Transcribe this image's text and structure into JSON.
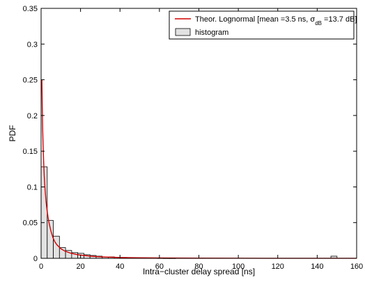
{
  "chart_data": {
    "type": "bar",
    "xlabel": "Intra−cluster delay spread [ns]",
    "ylabel": "PDF",
    "xlim": [
      0,
      160
    ],
    "ylim": [
      0,
      0.35
    ],
    "xticks": [
      0,
      20,
      40,
      60,
      80,
      100,
      120,
      140,
      160
    ],
    "xtick_labels": [
      "0",
      "20",
      "40",
      "60",
      "80",
      "100",
      "120",
      "140",
      "160"
    ],
    "yticks": [
      0,
      0.05,
      0.1,
      0.15,
      0.2,
      0.25,
      0.3,
      0.35
    ],
    "ytick_labels": [
      "0",
      "0.05",
      "0.1",
      "0.15",
      "0.2",
      "0.25",
      "0.3",
      "0.35"
    ],
    "legend_position": "top-right",
    "grid": false,
    "series": [
      {
        "name": "histogram",
        "kind": "histogram",
        "color": "#e2e2e2",
        "edge_color": "#000000",
        "bin_width": 3.1,
        "bin_centers": [
          1.55,
          4.65,
          7.75,
          10.85,
          13.95,
          17.05,
          20.15,
          23.25,
          26.35,
          29.45,
          32.55,
          35.65,
          38.75,
          41.85,
          44.95,
          48.05,
          51.15,
          54.25,
          57.35,
          60.45,
          63.55,
          66.65,
          148.5
        ],
        "values": [
          0.128,
          0.053,
          0.031,
          0.015,
          0.011,
          0.008,
          0.007,
          0.005,
          0.004,
          0.003,
          0.002,
          0.002,
          0.0015,
          0.0012,
          0.001,
          0.0008,
          0.0007,
          0.0006,
          0.0005,
          0.0004,
          0.0003,
          0.0003,
          0.003
        ]
      },
      {
        "name": "Theor. Lognormal [mean =3.5 ns, σdB =13.7 dB]",
        "kind": "line",
        "color": "#d40000",
        "x": [
          0.4,
          0.6,
          0.8,
          1.0,
          1.3,
          1.6,
          2.0,
          2.5,
          3.0,
          3.5,
          4.0,
          5.0,
          6.0,
          7.0,
          8.0,
          10.0,
          12.0,
          15.0,
          18.0,
          20.0,
          25.0,
          30.0,
          40.0,
          50.0,
          60.0,
          80.0,
          100.0,
          130.0,
          160.0
        ],
        "y": [
          0.25,
          0.21,
          0.181,
          0.16,
          0.135,
          0.115,
          0.097,
          0.08,
          0.068,
          0.058,
          0.05,
          0.038,
          0.029,
          0.023,
          0.019,
          0.0135,
          0.0102,
          0.0072,
          0.0054,
          0.0045,
          0.003,
          0.0021,
          0.0012,
          0.0008,
          0.0005,
          0.00025,
          0.00014,
          7e-05,
          3e-05
        ]
      }
    ]
  },
  "legend": {
    "line_label_prefix": "Theor. Lognormal [mean =3.5 ns, σ",
    "line_label_sub": "dB",
    "line_label_suffix": " =13.7 dB]",
    "hist_label": "histogram"
  }
}
